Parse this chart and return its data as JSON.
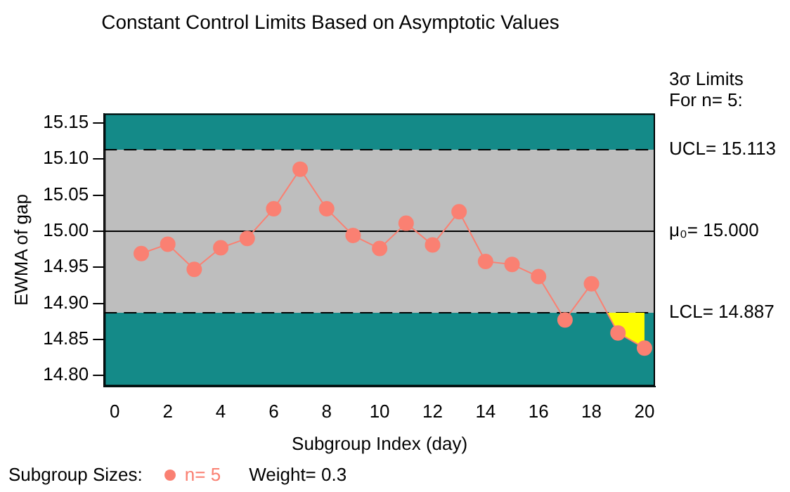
{
  "chart_data": {
    "type": "line",
    "title": "Constant Control Limits Based on Asymptotic Values",
    "xlabel": "Subgroup Index (day)",
    "ylabel": "EWMA of gap",
    "x": [
      1,
      2,
      3,
      4,
      5,
      6,
      7,
      8,
      9,
      10,
      11,
      12,
      13,
      14,
      15,
      16,
      17,
      18,
      19,
      20
    ],
    "series": [
      {
        "name": "n= 5",
        "color": "#fa8072",
        "values": [
          14.969,
          14.982,
          14.947,
          14.977,
          14.99,
          15.031,
          15.086,
          15.031,
          14.994,
          14.976,
          15.011,
          14.981,
          15.027,
          14.958,
          14.954,
          14.937,
          14.877,
          14.927,
          14.859,
          14.838
        ]
      },
      {
        "type": "area",
        "color": "#ffff00",
        "marker": "none",
        "x": [
          18.59,
          19,
          20,
          20
        ],
        "values": [
          14.887,
          14.859,
          14.838,
          14.887
        ]
      }
    ],
    "xlim": [
      -0.4,
      20.4
    ],
    "xticks": [
      0,
      2,
      4,
      6,
      8,
      10,
      12,
      14,
      16,
      18,
      20
    ],
    "ylim": [
      14.785,
      15.163
    ],
    "yticks": [
      {
        "value": 14.8,
        "label": "14.80"
      },
      {
        "value": 14.85,
        "label": "14.85"
      },
      {
        "value": 14.9,
        "label": "14.90"
      },
      {
        "value": 14.95,
        "label": "14.95"
      },
      {
        "value": 15.0,
        "label": "15.00"
      },
      {
        "value": 15.05,
        "label": "15.05"
      },
      {
        "value": 15.1,
        "label": "15.10"
      },
      {
        "value": 15.15,
        "label": "15.15"
      }
    ],
    "bands": [
      {
        "axis": "y",
        "from": 14.785,
        "to": 14.887,
        "color": "#148a88"
      },
      {
        "axis": "y",
        "from": 14.887,
        "to": 15.113,
        "color": "#bebebe"
      },
      {
        "axis": "y",
        "from": 15.113,
        "to": 15.163,
        "color": "#148a88"
      }
    ],
    "ref_lines": [
      {
        "axis": "y",
        "value": 15.113,
        "label": "UCL= 15.113",
        "line_style": "dashed",
        "color": "#000000"
      },
      {
        "axis": "y",
        "value": 15.0,
        "label": "μ₀= 15.000",
        "line_style": "solid",
        "color": "#000000"
      },
      {
        "axis": "y",
        "value": 14.887,
        "label": "LCL= 14.887",
        "line_style": "dashed",
        "color": "#000000"
      }
    ],
    "annotations": [
      "3σ Limits",
      "For n= 5:",
      "Subgroup Sizes:",
      "Weight= 0.3"
    ],
    "marker": "circle",
    "grid": false,
    "legend": "bottom left"
  }
}
